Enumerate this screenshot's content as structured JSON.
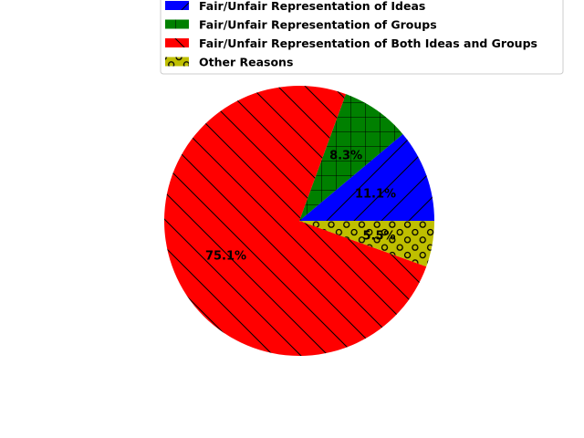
{
  "chart_data": {
    "type": "pie",
    "title": "",
    "slices": [
      {
        "label": "Fair/Unfair Representation of Ideas",
        "value": 11.1,
        "pct_label": "11.1%",
        "color": "#0000ff",
        "hatch": "diagonal-forward"
      },
      {
        "label": "Fair/Unfair Representation of Groups",
        "value": 8.3,
        "pct_label": "8.3%",
        "color": "#008000",
        "hatch": "grid"
      },
      {
        "label": "Fair/Unfair Representation of Both Ideas and Groups",
        "value": 75.1,
        "pct_label": "75.1%",
        "color": "#ff0000",
        "hatch": "diagonal-back"
      },
      {
        "label": "Other Reasons",
        "value": 5.5,
        "pct_label": "5.5%",
        "color": "#bfbf00",
        "hatch": "circles"
      }
    ],
    "start_angle_deg": 0,
    "direction": "counterclockwise",
    "legend_position": "upper-right"
  }
}
